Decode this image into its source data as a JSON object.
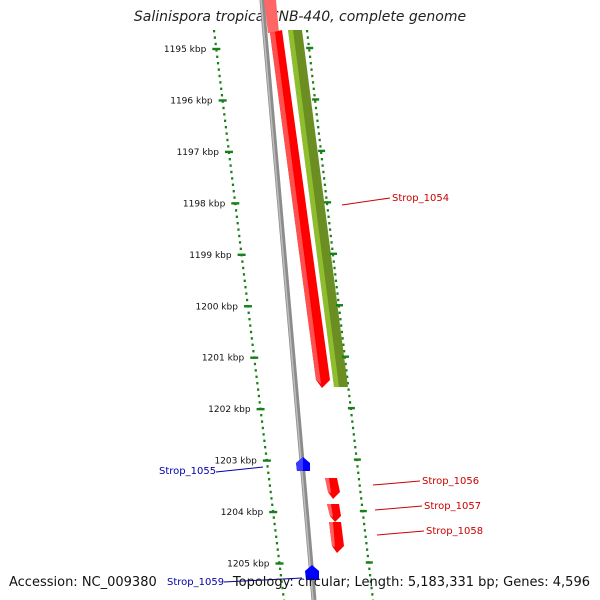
{
  "title": "Salinispora tropica CNB-440, complete genome",
  "footer": {
    "accession": "Accession: NC_009380",
    "summary": "Topology: circular; Length: 5,183,331 bp; Genes: 4,596"
  },
  "ticks": [
    {
      "label": "1195 kbp"
    },
    {
      "label": "1196 kbp"
    },
    {
      "label": "1197 kbp"
    },
    {
      "label": "1198 kbp"
    },
    {
      "label": "1199 kbp"
    },
    {
      "label": "1200 kbp"
    },
    {
      "label": "1201 kbp"
    },
    {
      "label": "1202 kbp"
    },
    {
      "label": "1203 kbp"
    },
    {
      "label": "1204 kbp"
    },
    {
      "label": "1205 kbp"
    }
  ],
  "gene_labels": {
    "strop_1054": "Strop_1054",
    "strop_1055": "Strop_1055",
    "strop_1056": "Strop_1056",
    "strop_1057": "Strop_1057",
    "strop_1058": "Strop_1058",
    "strop_1059": "Strop_1059"
  },
  "colors": {
    "forward_gene": "#ff0000",
    "reverse_gene": "#0000ff",
    "cds": "#6b8e23",
    "backbone": "#8c8c8c",
    "ruler": "#1a7f1a",
    "forward_label": "#cc0000",
    "reverse_label": "#0000aa"
  }
}
